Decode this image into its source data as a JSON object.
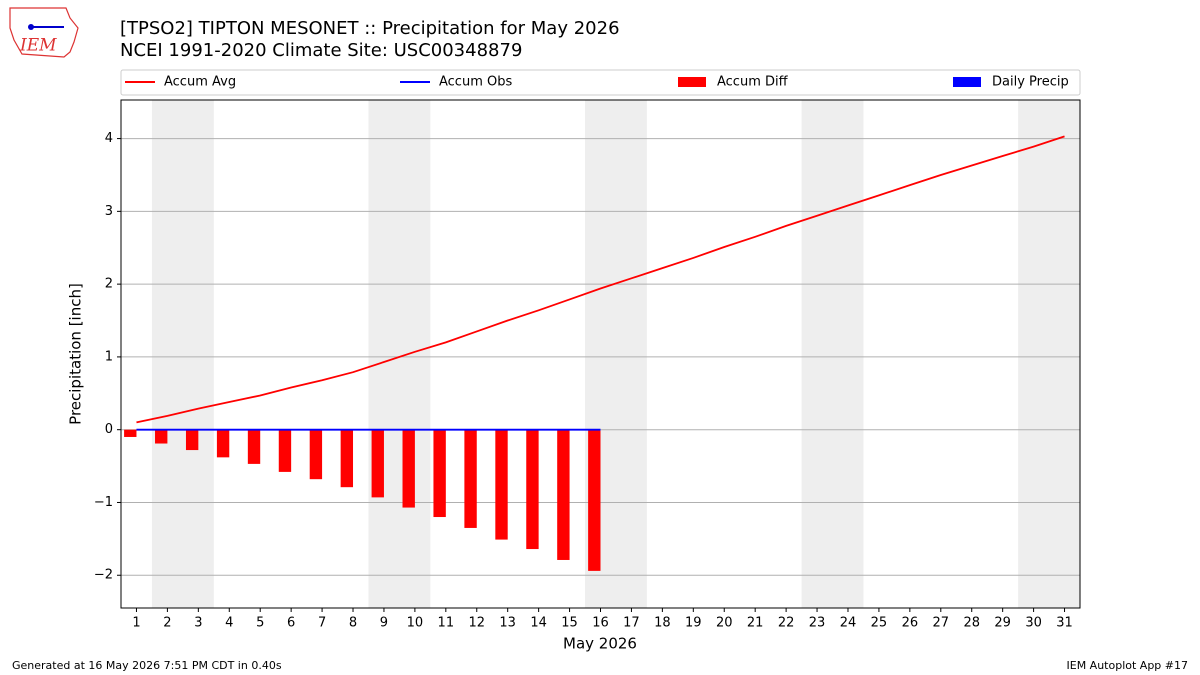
{
  "chart_data": {
    "type": "line",
    "title": "[TPSO2] TIPTON MESONET :: Precipitation for May 2026",
    "subtitle": "NCEI 1991-2020 Climate Site: USC00348879",
    "logo_text": "IEM",
    "xlabel": "May 2026",
    "ylabel": "Precipitation [inch]",
    "footer_left": "Generated at 16 May 2026 7:51 PM CDT in 0.40s",
    "footer_right": "IEM Autoplot App #17",
    "x": [
      1,
      2,
      3,
      4,
      5,
      6,
      7,
      8,
      9,
      10,
      11,
      12,
      13,
      14,
      15,
      16,
      17,
      18,
      19,
      20,
      21,
      22,
      23,
      24,
      25,
      26,
      27,
      28,
      29,
      30,
      31
    ],
    "xlim": [
      0.5,
      31.5
    ],
    "xticks": [
      1,
      2,
      3,
      4,
      5,
      6,
      7,
      8,
      9,
      10,
      11,
      12,
      13,
      14,
      15,
      16,
      17,
      18,
      19,
      20,
      21,
      22,
      23,
      24,
      25,
      26,
      27,
      28,
      29,
      30,
      31
    ],
    "ylim": [
      -2.45,
      4.53
    ],
    "yticks": [
      {
        "value": -2,
        "label": "−2"
      },
      {
        "value": -1,
        "label": "−1"
      },
      0,
      1,
      2,
      3,
      4
    ],
    "grid": true,
    "shaded_x_ranges": [
      [
        1.5,
        3.5
      ],
      [
        8.5,
        10.5
      ],
      [
        15.5,
        17.5
      ],
      [
        22.5,
        24.5
      ],
      [
        29.5,
        31.5
      ]
    ],
    "series": [
      {
        "name": "Accum Avg",
        "kind": "line",
        "color": "#ff0000",
        "values": [
          0.1,
          0.19,
          0.29,
          0.38,
          0.47,
          0.58,
          0.68,
          0.79,
          0.93,
          1.07,
          1.2,
          1.35,
          1.5,
          1.64,
          1.79,
          1.94,
          2.08,
          2.22,
          2.36,
          2.51,
          2.65,
          2.8,
          2.94,
          3.08,
          3.22,
          3.36,
          3.5,
          3.63,
          3.76,
          3.89,
          4.03
        ]
      },
      {
        "name": "Accum Obs",
        "kind": "line",
        "color": "#0000ff",
        "values": [
          0,
          0,
          0,
          0,
          0,
          0,
          0,
          0,
          0,
          0,
          0,
          0,
          0,
          0,
          0,
          0,
          null,
          null,
          null,
          null,
          null,
          null,
          null,
          null,
          null,
          null,
          null,
          null,
          null,
          null,
          null
        ]
      },
      {
        "name": "Accum Diff",
        "kind": "bar",
        "color": "#ff0000",
        "values": [
          -0.1,
          -0.19,
          -0.28,
          -0.38,
          -0.47,
          -0.58,
          -0.68,
          -0.79,
          -0.93,
          -1.07,
          -1.2,
          -1.35,
          -1.51,
          -1.64,
          -1.79,
          -1.94,
          null,
          null,
          null,
          null,
          null,
          null,
          null,
          null,
          null,
          null,
          null,
          null,
          null,
          null,
          null
        ]
      },
      {
        "name": "Daily Precip",
        "kind": "bar",
        "color": "#0000ff",
        "values": [
          0,
          0,
          0,
          0,
          0,
          0,
          0,
          0,
          0,
          0,
          0,
          0,
          0,
          0,
          0,
          0,
          null,
          null,
          null,
          null,
          null,
          null,
          null,
          null,
          null,
          null,
          null,
          null,
          null,
          null,
          null
        ]
      }
    ]
  }
}
